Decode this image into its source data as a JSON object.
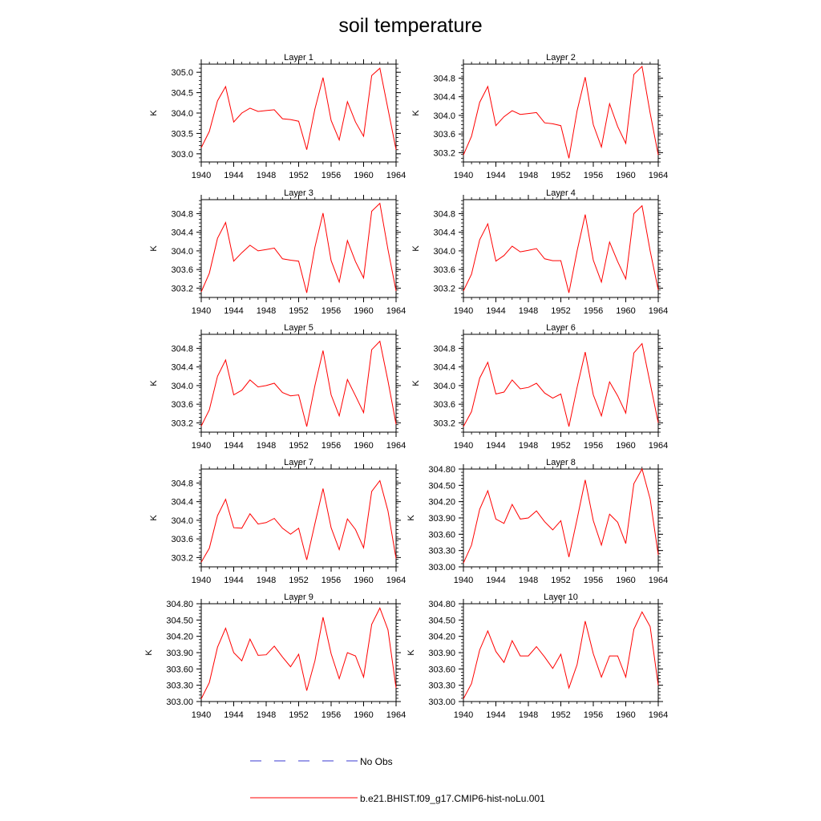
{
  "figure": {
    "title": "soil temperature",
    "legend": {
      "obs_label": "No Obs",
      "model_label": "b.e21.BHIST.f09_g17.CMIP6-hist-noLu.001",
      "obs_color": "#3a3ad0",
      "model_color": "#ff0000"
    }
  },
  "chart_data": [
    {
      "type": "line",
      "title": "Layer 1",
      "xlabel": "",
      "ylabel": "K",
      "xlim": [
        1940,
        1964
      ],
      "ylim": [
        302.8,
        305.2
      ],
      "xticks": [
        "1940",
        "1944",
        "1948",
        "1952",
        "1956",
        "1960",
        "1964"
      ],
      "yticks": [
        "303.0",
        "303.5",
        "304.0",
        "304.5",
        "305.0"
      ],
      "x": [
        1940,
        1941,
        1942,
        1943,
        1944,
        1945,
        1946,
        1947,
        1948,
        1949,
        1950,
        1951,
        1952,
        1953,
        1954,
        1955,
        1956,
        1957,
        1958,
        1959,
        1960,
        1961,
        1962,
        1963,
        1964
      ],
      "series": [
        {
          "name": "b.e21.BHIST.f09_g17.CMIP6-hist-noLu.001",
          "values": [
            303.15,
            303.55,
            304.3,
            304.65,
            303.78,
            304.0,
            304.12,
            304.04,
            304.06,
            304.08,
            303.86,
            303.84,
            303.8,
            303.1,
            304.1,
            304.87,
            303.82,
            303.34,
            304.28,
            303.78,
            303.43,
            304.92,
            305.1,
            304.1,
            303.1
          ]
        }
      ]
    },
    {
      "type": "line",
      "title": "Layer 2",
      "xlabel": "",
      "ylabel": "K",
      "xlim": [
        1940,
        1964
      ],
      "ylim": [
        303.0,
        305.1
      ],
      "xticks": [
        "1940",
        "1944",
        "1948",
        "1952",
        "1956",
        "1960",
        "1964"
      ],
      "yticks": [
        "303.2",
        "303.6",
        "304.0",
        "304.4",
        "304.8"
      ],
      "x": [
        1940,
        1941,
        1942,
        1943,
        1944,
        1945,
        1946,
        1947,
        1948,
        1949,
        1950,
        1951,
        1952,
        1953,
        1954,
        1955,
        1956,
        1957,
        1958,
        1959,
        1960,
        1961,
        1962,
        1963,
        1964
      ],
      "series": [
        {
          "name": "b.e21.BHIST.f09_g17.CMIP6-hist-noLu.001",
          "values": [
            303.15,
            303.55,
            304.28,
            304.62,
            303.78,
            303.97,
            304.1,
            304.02,
            304.04,
            304.06,
            303.84,
            303.82,
            303.78,
            303.08,
            304.1,
            304.82,
            303.8,
            303.32,
            304.25,
            303.76,
            303.4,
            304.88,
            305.05,
            304.05,
            303.15
          ]
        }
      ]
    },
    {
      "type": "line",
      "title": "Layer 3",
      "xlabel": "",
      "ylabel": "K",
      "xlim": [
        1940,
        1964
      ],
      "ylim": [
        303.0,
        305.1
      ],
      "xticks": [
        "1940",
        "1944",
        "1948",
        "1952",
        "1956",
        "1960",
        "1964"
      ],
      "yticks": [
        "303.2",
        "303.6",
        "304.0",
        "304.4",
        "304.8"
      ],
      "x": [
        1940,
        1941,
        1942,
        1943,
        1944,
        1945,
        1946,
        1947,
        1948,
        1949,
        1950,
        1951,
        1952,
        1953,
        1954,
        1955,
        1956,
        1957,
        1958,
        1959,
        1960,
        1961,
        1962,
        1963,
        1964
      ],
      "series": [
        {
          "name": "b.e21.BHIST.f09_g17.CMIP6-hist-noLu.001",
          "values": [
            303.12,
            303.52,
            304.27,
            304.61,
            303.78,
            303.96,
            304.12,
            304.0,
            304.03,
            304.06,
            303.83,
            303.8,
            303.78,
            303.1,
            304.08,
            304.81,
            303.79,
            303.33,
            304.22,
            303.77,
            303.42,
            304.85,
            305.02,
            304.03,
            303.14
          ]
        }
      ]
    },
    {
      "type": "line",
      "title": "Layer 4",
      "xlabel": "",
      "ylabel": "K",
      "xlim": [
        1940,
        1964
      ],
      "ylim": [
        303.0,
        305.1
      ],
      "xticks": [
        "1940",
        "1944",
        "1948",
        "1952",
        "1956",
        "1960",
        "1964"
      ],
      "yticks": [
        "303.2",
        "303.6",
        "304.0",
        "304.4",
        "304.8"
      ],
      "x": [
        1940,
        1941,
        1942,
        1943,
        1944,
        1945,
        1946,
        1947,
        1948,
        1949,
        1950,
        1951,
        1952,
        1953,
        1954,
        1955,
        1956,
        1957,
        1958,
        1959,
        1960,
        1961,
        1962,
        1963,
        1964
      ],
      "series": [
        {
          "name": "b.e21.BHIST.f09_g17.CMIP6-hist-noLu.001",
          "values": [
            303.14,
            303.5,
            304.24,
            304.58,
            303.78,
            303.9,
            304.1,
            303.98,
            304.01,
            304.05,
            303.83,
            303.79,
            303.79,
            303.1,
            304.0,
            304.78,
            303.8,
            303.33,
            304.19,
            303.77,
            303.4,
            304.8,
            304.97,
            304.0,
            303.16
          ]
        }
      ]
    },
    {
      "type": "line",
      "title": "Layer 5",
      "xlabel": "",
      "ylabel": "K",
      "xlim": [
        1940,
        1964
      ],
      "ylim": [
        303.0,
        305.1
      ],
      "xticks": [
        "1940",
        "1944",
        "1948",
        "1952",
        "1956",
        "1960",
        "1964"
      ],
      "yticks": [
        "303.2",
        "303.6",
        "304.0",
        "304.4",
        "304.8"
      ],
      "x": [
        1940,
        1941,
        1942,
        1943,
        1944,
        1945,
        1946,
        1947,
        1948,
        1949,
        1950,
        1951,
        1952,
        1953,
        1954,
        1955,
        1956,
        1957,
        1958,
        1959,
        1960,
        1961,
        1962,
        1963,
        1964
      ],
      "series": [
        {
          "name": "b.e21.BHIST.f09_g17.CMIP6-hist-noLu.001",
          "values": [
            303.13,
            303.48,
            304.2,
            304.55,
            303.8,
            303.9,
            304.12,
            303.97,
            304.0,
            304.05,
            303.85,
            303.78,
            303.8,
            303.12,
            304.0,
            304.75,
            303.8,
            303.35,
            304.13,
            303.78,
            303.42,
            304.77,
            304.95,
            304.1,
            303.17
          ]
        }
      ]
    },
    {
      "type": "line",
      "title": "Layer 6",
      "xlabel": "",
      "ylabel": "K",
      "xlim": [
        1940,
        1964
      ],
      "ylim": [
        303.0,
        305.1
      ],
      "xticks": [
        "1940",
        "1944",
        "1948",
        "1952",
        "1956",
        "1960",
        "1964"
      ],
      "yticks": [
        "303.2",
        "303.6",
        "304.0",
        "304.4",
        "304.8"
      ],
      "x": [
        1940,
        1941,
        1942,
        1943,
        1944,
        1945,
        1946,
        1947,
        1948,
        1949,
        1950,
        1951,
        1952,
        1953,
        1954,
        1955,
        1956,
        1957,
        1958,
        1959,
        1960,
        1961,
        1962,
        1963,
        1964
      ],
      "series": [
        {
          "name": "b.e21.BHIST.f09_g17.CMIP6-hist-noLu.001",
          "values": [
            303.12,
            303.44,
            304.16,
            304.5,
            303.82,
            303.86,
            304.12,
            303.93,
            303.96,
            304.05,
            303.84,
            303.73,
            303.82,
            303.12,
            303.96,
            304.72,
            303.8,
            303.35,
            304.08,
            303.78,
            303.41,
            304.7,
            304.9,
            304.05,
            303.2
          ]
        }
      ]
    },
    {
      "type": "line",
      "title": "Layer 7",
      "xlabel": "",
      "ylabel": "K",
      "xlim": [
        1940,
        1964
      ],
      "ylim": [
        303.0,
        305.1
      ],
      "xticks": [
        "1940",
        "1944",
        "1948",
        "1952",
        "1956",
        "1960",
        "1964"
      ],
      "yticks": [
        "303.2",
        "303.6",
        "304.0",
        "304.4",
        "304.8"
      ],
      "x": [
        1940,
        1941,
        1942,
        1943,
        1944,
        1945,
        1946,
        1947,
        1948,
        1949,
        1950,
        1951,
        1952,
        1953,
        1954,
        1955,
        1956,
        1957,
        1958,
        1959,
        1960,
        1961,
        1962,
        1963,
        1964
      ],
      "series": [
        {
          "name": "b.e21.BHIST.f09_g17.CMIP6-hist-noLu.001",
          "values": [
            303.1,
            303.4,
            304.1,
            304.45,
            303.84,
            303.83,
            304.14,
            303.92,
            303.95,
            304.04,
            303.83,
            303.7,
            303.83,
            303.15,
            303.93,
            304.68,
            303.84,
            303.37,
            304.03,
            303.8,
            303.41,
            304.62,
            304.85,
            304.2,
            303.18
          ]
        }
      ]
    },
    {
      "type": "line",
      "title": "Layer 8",
      "xlabel": "",
      "ylabel": "K",
      "xlim": [
        1940,
        1964
      ],
      "ylim": [
        303.0,
        304.8
      ],
      "xticks": [
        "1940",
        "1944",
        "1948",
        "1952",
        "1956",
        "1960",
        "1964"
      ],
      "yticks": [
        "303.00",
        "303.30",
        "303.60",
        "303.90",
        "304.20",
        "304.50",
        "304.80"
      ],
      "x": [
        1940,
        1941,
        1942,
        1943,
        1944,
        1945,
        1946,
        1947,
        1948,
        1949,
        1950,
        1951,
        1952,
        1953,
        1954,
        1955,
        1956,
        1957,
        1958,
        1959,
        1960,
        1961,
        1962,
        1963,
        1964
      ],
      "series": [
        {
          "name": "b.e21.BHIST.f09_g17.CMIP6-hist-noLu.001",
          "values": [
            303.07,
            303.4,
            304.06,
            304.4,
            303.88,
            303.8,
            304.15,
            303.88,
            303.9,
            304.03,
            303.83,
            303.68,
            303.85,
            303.18,
            303.88,
            304.6,
            303.85,
            303.4,
            303.97,
            303.82,
            303.43,
            304.53,
            304.8,
            304.25,
            303.22
          ]
        }
      ]
    },
    {
      "type": "line",
      "title": "Layer 9",
      "xlabel": "",
      "ylabel": "K",
      "xlim": [
        1940,
        1964
      ],
      "ylim": [
        303.0,
        304.8
      ],
      "xticks": [
        "1940",
        "1944",
        "1948",
        "1952",
        "1956",
        "1960",
        "1964"
      ],
      "yticks": [
        "303.00",
        "303.30",
        "303.60",
        "303.90",
        "304.20",
        "304.50",
        "304.80"
      ],
      "x": [
        1940,
        1941,
        1942,
        1943,
        1944,
        1945,
        1946,
        1947,
        1948,
        1949,
        1950,
        1951,
        1952,
        1953,
        1954,
        1955,
        1956,
        1957,
        1958,
        1959,
        1960,
        1961,
        1962,
        1963,
        1964
      ],
      "series": [
        {
          "name": "b.e21.BHIST.f09_g17.CMIP6-hist-noLu.001",
          "values": [
            303.05,
            303.35,
            304.0,
            304.35,
            303.9,
            303.75,
            304.15,
            303.85,
            303.86,
            304.02,
            303.82,
            303.64,
            303.87,
            303.2,
            303.75,
            304.55,
            303.88,
            303.42,
            303.9,
            303.84,
            303.45,
            304.42,
            304.72,
            304.32,
            303.25
          ]
        }
      ]
    },
    {
      "type": "line",
      "title": "Layer 10",
      "xlabel": "",
      "ylabel": "K",
      "xlim": [
        1940,
        1964
      ],
      "ylim": [
        303.0,
        304.8
      ],
      "xticks": [
        "1940",
        "1944",
        "1948",
        "1952",
        "1956",
        "1960",
        "1964"
      ],
      "yticks": [
        "303.00",
        "303.30",
        "303.60",
        "303.90",
        "304.20",
        "304.50",
        "304.80"
      ],
      "x": [
        1940,
        1941,
        1942,
        1943,
        1944,
        1945,
        1946,
        1947,
        1948,
        1949,
        1950,
        1951,
        1952,
        1953,
        1954,
        1955,
        1956,
        1957,
        1958,
        1959,
        1960,
        1961,
        1962,
        1963,
        1964
      ],
      "series": [
        {
          "name": "b.e21.BHIST.f09_g17.CMIP6-hist-noLu.001",
          "values": [
            303.05,
            303.33,
            303.95,
            304.3,
            303.92,
            303.72,
            304.12,
            303.84,
            303.84,
            304.01,
            303.82,
            303.61,
            303.87,
            303.25,
            303.68,
            304.48,
            303.88,
            303.45,
            303.84,
            303.84,
            303.45,
            304.33,
            304.65,
            304.38,
            303.3
          ]
        }
      ]
    }
  ]
}
